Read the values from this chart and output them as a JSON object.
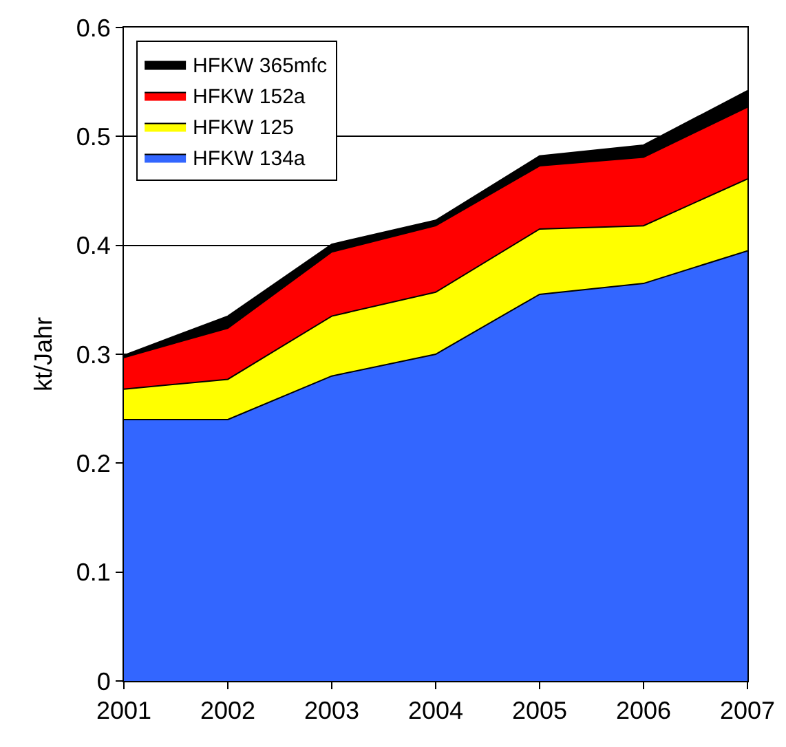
{
  "chart_data": {
    "type": "area",
    "stacked": true,
    "ylabel": "kt/Jahr",
    "x": [
      2001,
      2002,
      2003,
      2004,
      2005,
      2006,
      2007
    ],
    "xlim": [
      2001,
      2007
    ],
    "xticks": [
      2001,
      2002,
      2003,
      2004,
      2005,
      2006,
      2007
    ],
    "ylim": [
      0,
      0.6
    ],
    "yticks": [
      0,
      0.1,
      0.2,
      0.3,
      0.4,
      0.5,
      0.6
    ],
    "grid": "y",
    "legend": "top left",
    "series": [
      {
        "name": "HFKW 134a",
        "color": "#3366ff",
        "values": [
          0.24,
          0.24,
          0.28,
          0.3,
          0.355,
          0.365,
          0.395
        ]
      },
      {
        "name": "HFKW 125",
        "color": "#ffff00",
        "values": [
          0.028,
          0.037,
          0.055,
          0.057,
          0.06,
          0.053,
          0.066
        ]
      },
      {
        "name": "HFKW 152a",
        "color": "#ff0000",
        "values": [
          0.029,
          0.047,
          0.059,
          0.061,
          0.058,
          0.063,
          0.066
        ]
      },
      {
        "name": "HFKW 365mfc",
        "color": "#000000",
        "values": [
          0.002,
          0.011,
          0.007,
          0.005,
          0.009,
          0.011,
          0.015
        ]
      }
    ]
  }
}
